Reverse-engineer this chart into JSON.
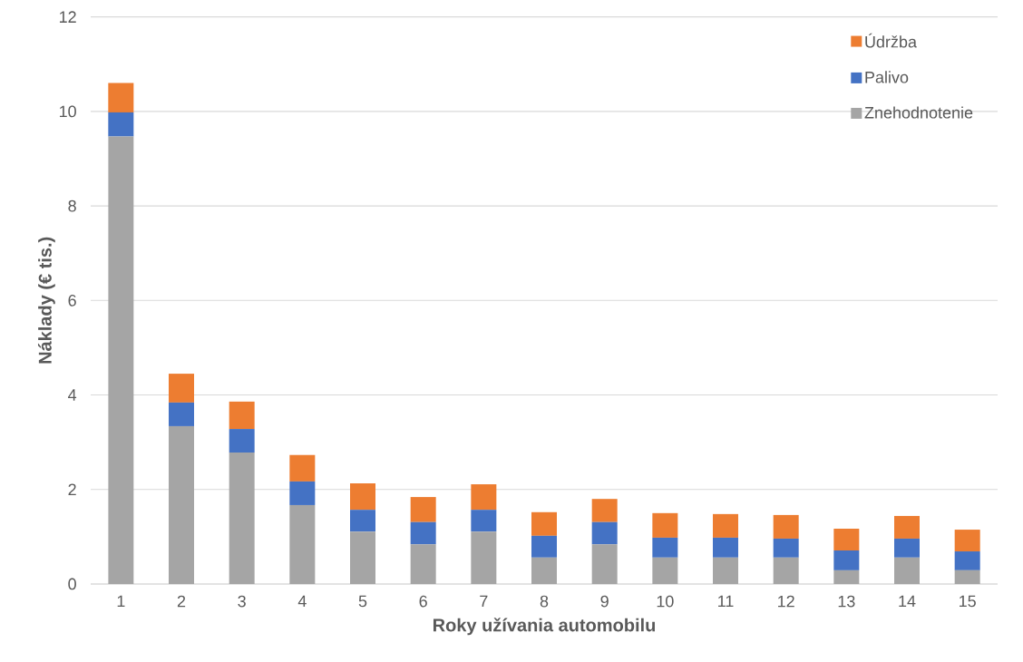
{
  "chart_data": {
    "type": "bar",
    "stacked": true,
    "xlabel": "Roky užívania automobilu",
    "ylabel": "Náklady (€ tis.)",
    "categories": [
      "1",
      "2",
      "3",
      "4",
      "5",
      "6",
      "7",
      "8",
      "9",
      "10",
      "11",
      "12",
      "13",
      "14",
      "15"
    ],
    "series": [
      {
        "name": "Znehodnotenie",
        "color": "#a5a5a5",
        "values": [
          9.47,
          3.34,
          2.78,
          1.67,
          1.11,
          0.84,
          1.11,
          0.56,
          0.84,
          0.56,
          0.56,
          0.56,
          0.29,
          0.56,
          0.29
        ]
      },
      {
        "name": "Palivo",
        "color": "#4472c4",
        "values": [
          0.51,
          0.5,
          0.5,
          0.5,
          0.46,
          0.47,
          0.46,
          0.46,
          0.47,
          0.42,
          0.42,
          0.4,
          0.42,
          0.4,
          0.4
        ]
      },
      {
        "name": "Údržba",
        "color": "#ed7d31",
        "values": [
          0.62,
          0.61,
          0.58,
          0.56,
          0.56,
          0.53,
          0.54,
          0.5,
          0.49,
          0.52,
          0.5,
          0.5,
          0.46,
          0.48,
          0.46
        ]
      }
    ],
    "ylim": [
      0,
      12
    ],
    "yticks": [
      0,
      2,
      4,
      6,
      8,
      10,
      12
    ],
    "grid": "y",
    "legend": "top right"
  }
}
